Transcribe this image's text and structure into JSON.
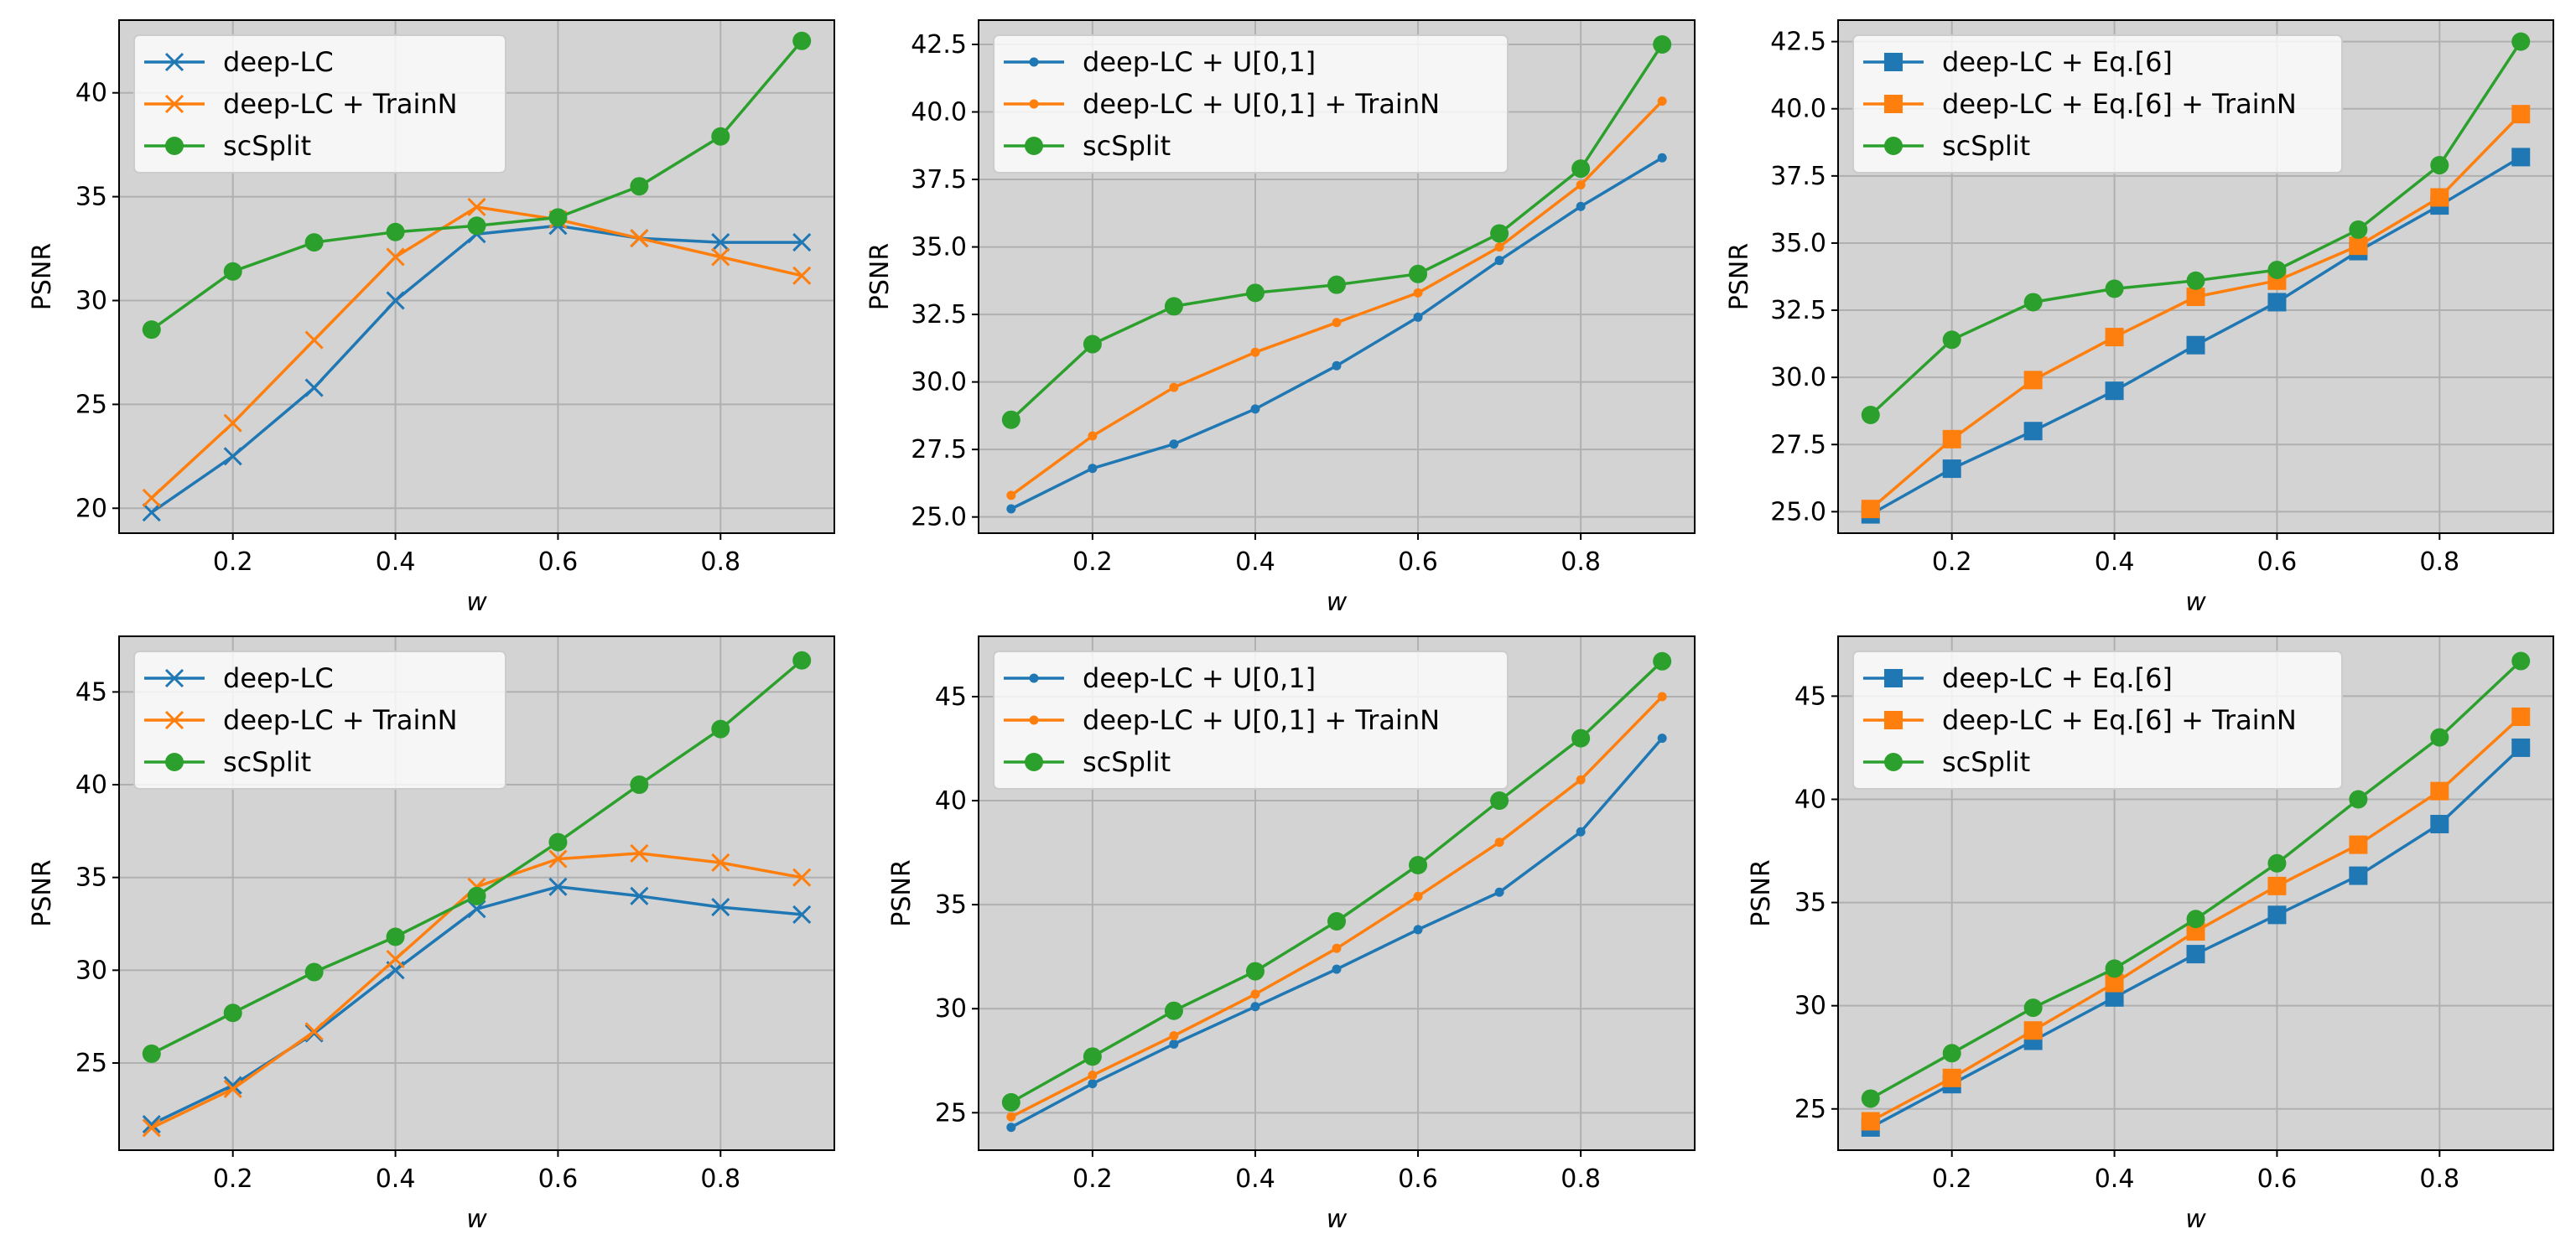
{
  "colors": {
    "blue": "#1f77b4",
    "orange": "#ff7f0e",
    "green": "#2ca02c",
    "background": "#d3d3d3",
    "grid": "#b0b0b0"
  },
  "chart_data": [
    {
      "type": "line",
      "xlabel": "w",
      "ylabel": "PSNR",
      "xlim": [
        0.06,
        0.94
      ],
      "ylim": [
        18.8,
        43.5
      ],
      "xticks": [
        0.2,
        0.4,
        0.6,
        0.8
      ],
      "yticks": [
        20,
        25,
        30,
        35,
        40
      ],
      "x": [
        0.1,
        0.2,
        0.3,
        0.4,
        0.5,
        0.6,
        0.7,
        0.8,
        0.9
      ],
      "legend_location": "top-left",
      "series": [
        {
          "name": "deep-LC",
          "color": "#1f77b4",
          "marker": "x",
          "values": [
            19.8,
            22.5,
            25.8,
            30.0,
            33.2,
            33.6,
            33.0,
            32.8,
            32.8
          ]
        },
        {
          "name": "deep-LC + TrainN",
          "color": "#ff7f0e",
          "marker": "x",
          "values": [
            20.5,
            24.1,
            28.1,
            32.1,
            34.5,
            33.9,
            33.0,
            32.1,
            31.2
          ]
        },
        {
          "name": "scSplit",
          "color": "#2ca02c",
          "marker": "o",
          "values": [
            28.6,
            31.4,
            32.8,
            33.3,
            33.6,
            34.0,
            35.5,
            37.9,
            42.5
          ]
        }
      ]
    },
    {
      "type": "line",
      "xlabel": "w",
      "ylabel": "PSNR",
      "xlim": [
        0.06,
        0.94
      ],
      "ylim": [
        24.4,
        43.4
      ],
      "xticks": [
        0.2,
        0.4,
        0.6,
        0.8
      ],
      "yticks": [
        25.0,
        27.5,
        30.0,
        32.5,
        35.0,
        37.5,
        40.0,
        42.5
      ],
      "ytick_labels": [
        "25.0",
        "27.5",
        "30.0",
        "32.5",
        "35.0",
        "37.5",
        "40.0",
        "42.5"
      ],
      "x": [
        0.1,
        0.2,
        0.3,
        0.4,
        0.5,
        0.6,
        0.7,
        0.8,
        0.9
      ],
      "legend_location": "top-left",
      "series": [
        {
          "name": "deep-LC + U[0,1]",
          "color": "#1f77b4",
          "marker": "dot",
          "values": [
            25.3,
            26.8,
            27.7,
            29.0,
            30.6,
            32.4,
            34.5,
            36.5,
            38.3
          ]
        },
        {
          "name": "deep-LC + U[0,1] + TrainN",
          "color": "#ff7f0e",
          "marker": "dot",
          "values": [
            25.8,
            28.0,
            29.8,
            31.1,
            32.2,
            33.3,
            35.0,
            37.3,
            40.4
          ]
        },
        {
          "name": "scSplit",
          "color": "#2ca02c",
          "marker": "o",
          "values": [
            28.6,
            31.4,
            32.8,
            33.3,
            33.6,
            34.0,
            35.5,
            37.9,
            42.5
          ]
        }
      ]
    },
    {
      "type": "line",
      "xlabel": "w",
      "ylabel": "PSNR",
      "xlim": [
        0.06,
        0.94
      ],
      "ylim": [
        24.2,
        43.3
      ],
      "xticks": [
        0.2,
        0.4,
        0.6,
        0.8
      ],
      "yticks": [
        25.0,
        27.5,
        30.0,
        32.5,
        35.0,
        37.5,
        40.0,
        42.5
      ],
      "ytick_labels": [
        "25.0",
        "27.5",
        "30.0",
        "32.5",
        "35.0",
        "37.5",
        "40.0",
        "42.5"
      ],
      "x": [
        0.1,
        0.2,
        0.3,
        0.4,
        0.5,
        0.6,
        0.7,
        0.8,
        0.9
      ],
      "legend_location": "top-left",
      "series": [
        {
          "name": "deep-LC + Eq.[6]",
          "color": "#1f77b4",
          "marker": "s",
          "values": [
            24.9,
            26.6,
            28.0,
            29.5,
            31.2,
            32.8,
            34.7,
            36.4,
            38.2
          ]
        },
        {
          "name": "deep-LC + Eq.[6] + TrainN",
          "color": "#ff7f0e",
          "marker": "s",
          "values": [
            25.1,
            27.7,
            29.9,
            31.5,
            33.0,
            33.6,
            34.9,
            36.7,
            39.8
          ]
        },
        {
          "name": "scSplit",
          "color": "#2ca02c",
          "marker": "o",
          "values": [
            28.6,
            31.4,
            32.8,
            33.3,
            33.6,
            34.0,
            35.5,
            37.9,
            42.5
          ]
        }
      ]
    },
    {
      "type": "line",
      "xlabel": "w",
      "ylabel": "PSNR",
      "xlim": [
        0.06,
        0.94
      ],
      "ylim": [
        20.3,
        48.0
      ],
      "xticks": [
        0.2,
        0.4,
        0.6,
        0.8
      ],
      "yticks": [
        25,
        30,
        35,
        40,
        45
      ],
      "x": [
        0.1,
        0.2,
        0.3,
        0.4,
        0.5,
        0.6,
        0.7,
        0.8,
        0.9
      ],
      "legend_location": "top-left",
      "series": [
        {
          "name": "deep-LC",
          "color": "#1f77b4",
          "marker": "x",
          "values": [
            21.7,
            23.8,
            26.6,
            30.0,
            33.3,
            34.5,
            34.0,
            33.4,
            33.0
          ]
        },
        {
          "name": "deep-LC + TrainN",
          "color": "#ff7f0e",
          "marker": "x",
          "values": [
            21.5,
            23.6,
            26.7,
            30.6,
            34.5,
            36.0,
            36.3,
            35.8,
            35.0
          ]
        },
        {
          "name": "scSplit",
          "color": "#2ca02c",
          "marker": "o",
          "values": [
            25.5,
            27.7,
            29.9,
            31.8,
            34.0,
            36.9,
            40.0,
            43.0,
            46.7
          ]
        }
      ]
    },
    {
      "type": "line",
      "xlabel": "w",
      "ylabel": "PSNR",
      "xlim": [
        0.06,
        0.94
      ],
      "ylim": [
        23.2,
        47.9
      ],
      "xticks": [
        0.2,
        0.4,
        0.6,
        0.8
      ],
      "yticks": [
        25,
        30,
        35,
        40,
        45
      ],
      "x": [
        0.1,
        0.2,
        0.3,
        0.4,
        0.5,
        0.6,
        0.7,
        0.8,
        0.9
      ],
      "legend_location": "top-left",
      "series": [
        {
          "name": "deep-LC + U[0,1]",
          "color": "#1f77b4",
          "marker": "dot",
          "values": [
            24.3,
            26.4,
            28.3,
            30.1,
            31.9,
            33.8,
            35.6,
            38.5,
            43.0
          ]
        },
        {
          "name": "deep-LC + U[0,1] + TrainN",
          "color": "#ff7f0e",
          "marker": "dot",
          "values": [
            24.8,
            26.8,
            28.7,
            30.7,
            32.9,
            35.4,
            38.0,
            41.0,
            45.0
          ]
        },
        {
          "name": "scSplit",
          "color": "#2ca02c",
          "marker": "o",
          "values": [
            25.5,
            27.7,
            29.9,
            31.8,
            34.2,
            36.9,
            40.0,
            43.0,
            46.7
          ]
        }
      ]
    },
    {
      "type": "line",
      "xlabel": "w",
      "ylabel": "PSNR",
      "xlim": [
        0.06,
        0.94
      ],
      "ylim": [
        23.0,
        47.9
      ],
      "xticks": [
        0.2,
        0.4,
        0.6,
        0.8
      ],
      "yticks": [
        25,
        30,
        35,
        40,
        45
      ],
      "x": [
        0.1,
        0.2,
        0.3,
        0.4,
        0.5,
        0.6,
        0.7,
        0.8,
        0.9
      ],
      "legend_location": "top-left",
      "series": [
        {
          "name": "deep-LC + Eq.[6]",
          "color": "#1f77b4",
          "marker": "s",
          "values": [
            24.1,
            26.2,
            28.3,
            30.4,
            32.5,
            34.4,
            36.3,
            38.8,
            42.5
          ]
        },
        {
          "name": "deep-LC + Eq.[6] + TrainN",
          "color": "#ff7f0e",
          "marker": "s",
          "values": [
            24.4,
            26.5,
            28.8,
            31.1,
            33.6,
            35.8,
            37.8,
            40.4,
            44.0
          ]
        },
        {
          "name": "scSplit",
          "color": "#2ca02c",
          "marker": "o",
          "values": [
            25.5,
            27.7,
            29.9,
            31.8,
            34.2,
            36.9,
            40.0,
            43.0,
            46.7
          ]
        }
      ]
    }
  ]
}
